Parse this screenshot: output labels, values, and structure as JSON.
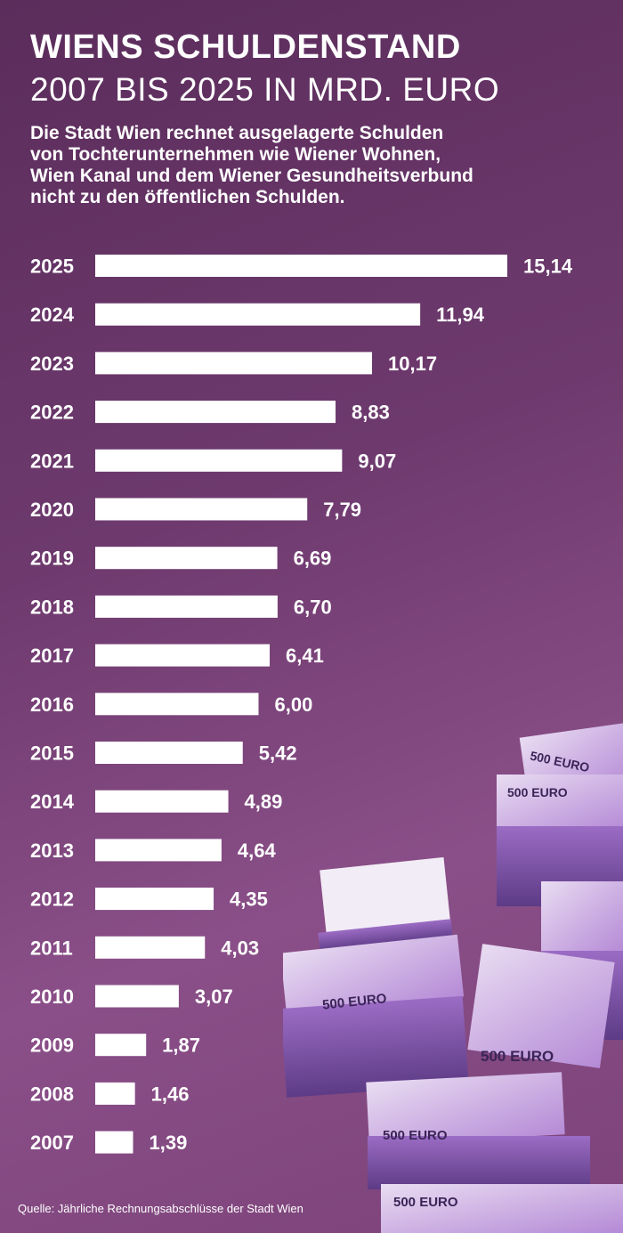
{
  "title": {
    "line1": "WIENS SCHULDENSTAND",
    "line2": "2007 BIS 2025 IN MRD. EURO"
  },
  "subtitle": [
    "Die Stadt Wien rechnet ausgelagerte Schulden",
    "von Tochterunternehmen wie Wiener Wohnen,",
    "Wien Kanal und dem Wiener Gesundheitsverbund",
    "nicht zu den öffentlichen Schulden."
  ],
  "source": "Quelle: Jährliche Rechnungsabschlüsse der Stadt Wien",
  "banknote_label": "500 EURO",
  "colors": {
    "bar": "#ffffff",
    "text": "#ffffff",
    "note": "#b58ad6"
  },
  "chart_data": {
    "type": "bar",
    "orientation": "horizontal",
    "title": "WIENS SCHULDENSTAND 2007 BIS 2025 IN MRD. EURO",
    "xlabel": "",
    "ylabel": "",
    "xlim": [
      0,
      15.14
    ],
    "categories": [
      "2025",
      "2024",
      "2023",
      "2022",
      "2021",
      "2020",
      "2019",
      "2018",
      "2017",
      "2016",
      "2015",
      "2014",
      "2013",
      "2012",
      "2011",
      "2010",
      "2009",
      "2008",
      "2007"
    ],
    "values": [
      15.14,
      11.94,
      10.17,
      8.83,
      9.07,
      7.79,
      6.69,
      6.7,
      6.41,
      6.0,
      5.42,
      4.89,
      4.64,
      4.35,
      4.03,
      3.07,
      1.87,
      1.46,
      1.39
    ],
    "labels": [
      "15,14",
      "11,94",
      "10,17",
      "8,83",
      "9,07",
      "7,79",
      "6,69",
      "6,70",
      "6,41",
      "6,00",
      "5,42",
      "4,89",
      "4,64",
      "4,35",
      "4,03",
      "3,07",
      "1,87",
      "1,46",
      "1,39"
    ]
  }
}
